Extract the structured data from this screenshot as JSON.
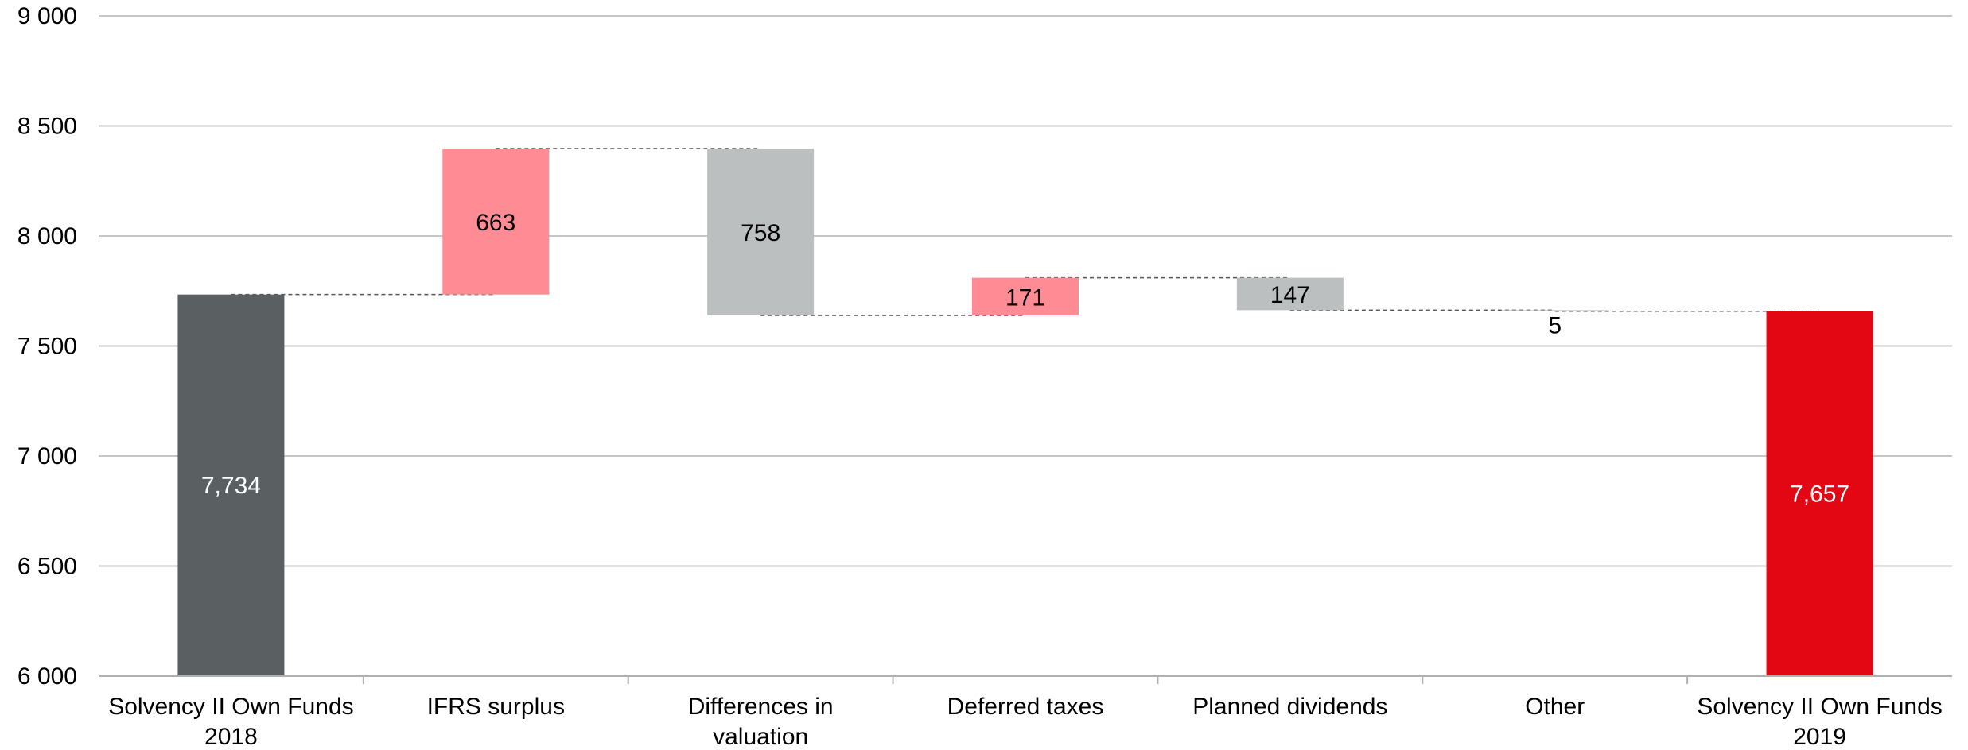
{
  "chart_data": {
    "type": "bar",
    "subtype": "waterfall",
    "title": "",
    "xlabel": "",
    "ylabel": "",
    "ylim": [
      6000,
      9000
    ],
    "yticks": [
      6000,
      6500,
      7000,
      7500,
      8000,
      8500,
      9000
    ],
    "ytick_labels": [
      "6 000",
      "6 500",
      "7 000",
      "7 500",
      "8 000",
      "8 500",
      "9 000"
    ],
    "grid": true,
    "legend": "none",
    "bars": [
      {
        "category": [
          "Solvency II Own Funds",
          "2018"
        ],
        "kind": "total",
        "start": 6000,
        "end": 7734,
        "label": "7,734",
        "color": "#5a6061",
        "label_color": "#ffffff"
      },
      {
        "category": [
          "IFRS surplus"
        ],
        "kind": "increase",
        "start": 7734,
        "end": 8397,
        "label": "663",
        "color": "#ff8c94",
        "label_color": "#000000"
      },
      {
        "category": [
          "Differences in",
          "valuation"
        ],
        "kind": "decrease",
        "start": 8397,
        "end": 7639,
        "label": "758",
        "color": "#bbbfc0",
        "label_color": "#000000"
      },
      {
        "category": [
          "Deferred taxes"
        ],
        "kind": "increase",
        "start": 7639,
        "end": 7810,
        "label": "171",
        "color": "#ff8c94",
        "label_color": "#000000"
      },
      {
        "category": [
          "Planned dividends"
        ],
        "kind": "decrease",
        "start": 7810,
        "end": 7663,
        "label": "147",
        "color": "#bbbfc0",
        "label_color": "#000000"
      },
      {
        "category": [
          "Other"
        ],
        "kind": "decrease",
        "start": 7663,
        "end": 7658,
        "label": "5",
        "color": "#bbbfc0",
        "label_color": "#000000"
      },
      {
        "category": [
          "Solvency II Own Funds",
          "2019"
        ],
        "kind": "total",
        "start": 6000,
        "end": 7657,
        "label": "7,657",
        "color": "#e30613",
        "label_color": "#ffffff"
      }
    ]
  }
}
